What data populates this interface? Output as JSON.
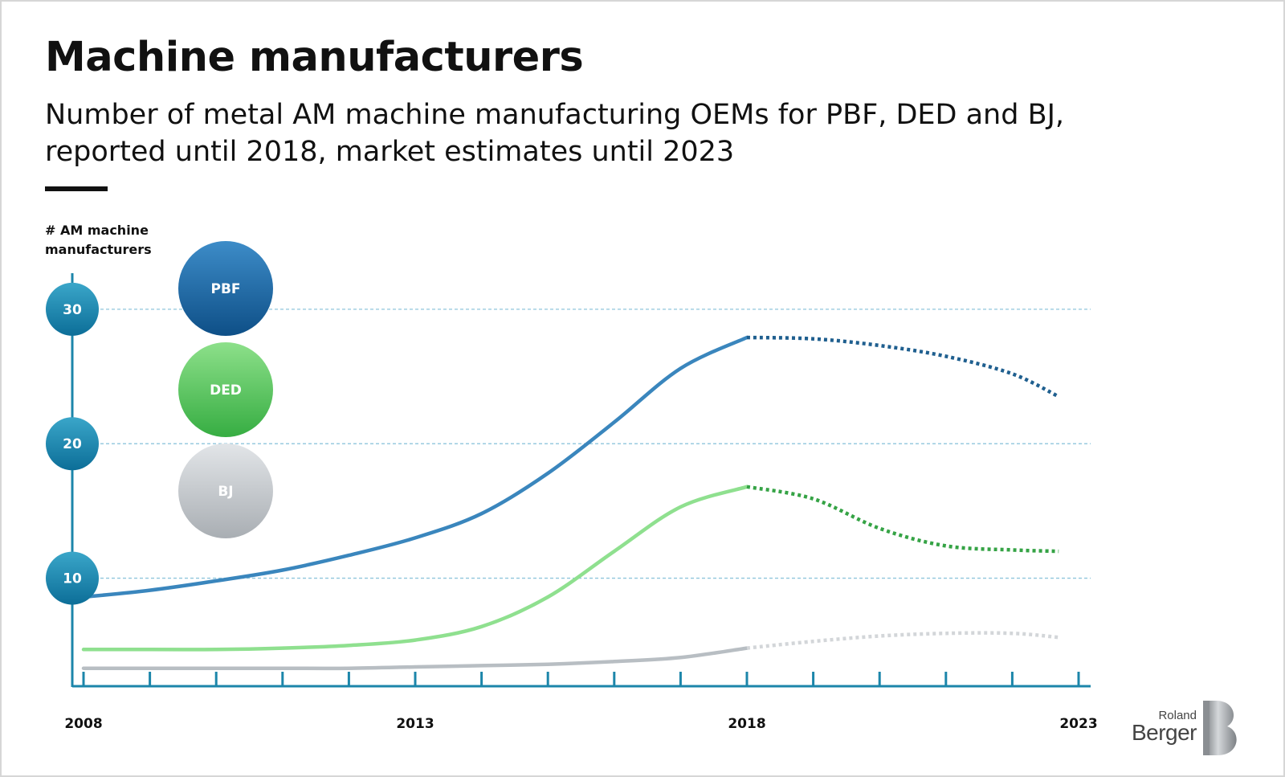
{
  "title": "Machine manufacturers",
  "subtitle": "Number of metal AM machine manufacturing OEMs for PBF, DED and BJ, reported until 2018, market estimates until 2023",
  "logo": {
    "top": "Roland",
    "bottom": "Berger"
  },
  "chart_data": {
    "type": "line",
    "ylabel": "# AM machine manufacturers",
    "ylabel_lines": [
      "# AM machine",
      "manufacturers"
    ],
    "xlabel": "",
    "x_tick_labels": [
      "2008",
      "2013",
      "2018",
      "2023"
    ],
    "y_tick_labels": [
      "10",
      "20",
      "30"
    ],
    "xlim": [
      2008,
      2023
    ],
    "ylim": [
      2,
      30
    ],
    "grid": "horizontal dashed at 10, 20, 30",
    "legend": "circles at top-left",
    "reported_until": 2018,
    "x": [
      2008,
      2009,
      2010,
      2011,
      2012,
      2013,
      2014,
      2015,
      2016,
      2017,
      2018,
      2019,
      2020,
      2021,
      2022,
      2022.7
    ],
    "series": [
      {
        "name": "PBF",
        "color": "#3a86bd",
        "forecast_color": "#1f5f8f",
        "values": [
          8.6,
          9.1,
          9.8,
          10.6,
          11.7,
          13.0,
          14.8,
          17.8,
          21.6,
          25.6,
          27.9,
          27.8,
          27.3,
          26.5,
          25.2,
          23.5
        ]
      },
      {
        "name": "DED",
        "color": "#8fe08f",
        "forecast_color": "#35a345",
        "values": [
          4.7,
          4.7,
          4.7,
          4.8,
          5.0,
          5.4,
          6.4,
          8.6,
          12.0,
          15.3,
          16.8,
          15.9,
          13.7,
          12.4,
          12.1,
          12.0
        ]
      },
      {
        "name": "BJ",
        "color": "#b8bec3",
        "forecast_color": "#d3d6d9",
        "values": [
          3.3,
          3.3,
          3.3,
          3.3,
          3.3,
          3.4,
          3.5,
          3.6,
          3.8,
          4.1,
          4.8,
          5.3,
          5.7,
          5.9,
          5.9,
          5.6
        ]
      }
    ],
    "colors": {
      "axis": "#1c86aa",
      "grid": "#8fc5dc",
      "tick_bubble_top": "#3aa6c9",
      "tick_bubble_bottom": "#0c6e98",
      "pbf_legend_top": "#3d8cc8",
      "pbf_legend_bottom": "#0e4f87",
      "ded_legend_top": "#8de08a",
      "ded_legend_bottom": "#36ad42",
      "bj_legend_top": "#e2e5e8",
      "bj_legend_bottom": "#a9aeb3"
    }
  }
}
